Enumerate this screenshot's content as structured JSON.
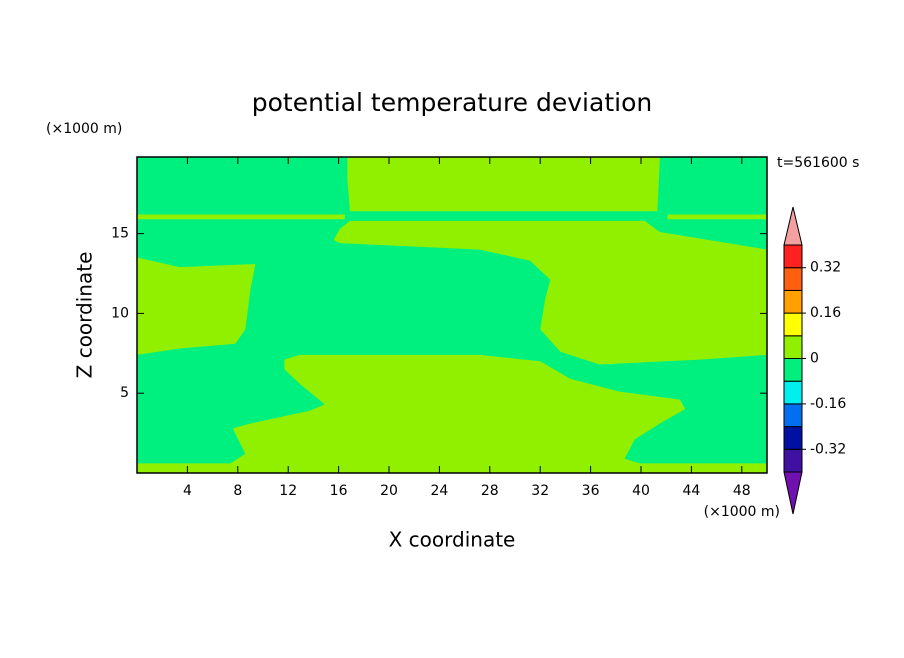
{
  "chart_data": {
    "type": "contour",
    "title": "potential temperature deviation",
    "xlabel": "X coordinate",
    "ylabel": "Z coordinate",
    "xunits": "(×1000 m)",
    "yunits": "(×1000 m)",
    "time_label": "t=561600 s",
    "xlim": [
      0,
      50
    ],
    "ylim": [
      0,
      19.8
    ],
    "xticks": [
      4,
      8,
      12,
      16,
      20,
      24,
      28,
      32,
      36,
      40,
      44,
      48
    ],
    "yticks": [
      5,
      10,
      15
    ],
    "background_range": [
      -0.08,
      0
    ],
    "regions": [
      {
        "range": [
          0,
          0.08
        ],
        "x": [
          16.7,
          41.5,
          41.3,
          16.9,
          16.7
        ],
        "z": [
          19.8,
          19.8,
          16.4,
          16.4,
          18.4
        ]
      },
      {
        "range": [
          0,
          0.08
        ],
        "x": [
          0,
          16.5,
          16.5,
          0
        ],
        "z": [
          16.2,
          16.2,
          15.9,
          15.9
        ]
      },
      {
        "range": [
          0,
          0.08
        ],
        "x": [
          42.1,
          50,
          50,
          42.1
        ],
        "z": [
          16.2,
          16.2,
          15.9,
          15.9
        ]
      },
      {
        "range": [
          0,
          0.08
        ],
        "x": [
          16.9,
          40.3,
          41.5,
          50,
          50,
          44.7,
          36.7,
          33.6,
          32.0,
          32.4,
          32.8,
          31.2,
          27.2,
          16.1,
          15.6,
          16.1
        ],
        "z": [
          15.8,
          15.8,
          15.1,
          14.0,
          7.4,
          7.1,
          6.8,
          7.6,
          9.0,
          10.9,
          12.1,
          13.3,
          14.0,
          14.4,
          14.6,
          15.3
        ]
      },
      {
        "range": [
          0,
          0.08
        ],
        "x": [
          0,
          3.4,
          9.4,
          9.0,
          8.6,
          7.8,
          3.4,
          0
        ],
        "z": [
          13.5,
          12.9,
          13.1,
          11.5,
          9.0,
          8.1,
          7.8,
          7.4
        ]
      },
      {
        "range": [
          0,
          0.08
        ],
        "x": [
          11.7,
          12.9,
          27.2,
          32.0,
          34.4,
          38.3,
          43.1,
          43.5,
          41.5,
          39.5,
          38.7,
          39.9,
          50,
          50,
          0,
          0,
          7.4,
          8.6,
          7.6,
          9.0,
          13.7,
          14.9,
          12.9,
          11.7
        ],
        "z": [
          7.1,
          7.4,
          7.4,
          7.0,
          5.9,
          5.1,
          4.6,
          4.0,
          3.1,
          2.1,
          0.9,
          0.6,
          0.6,
          0,
          0,
          0.6,
          0.6,
          1.2,
          2.8,
          3.1,
          3.9,
          4.3,
          5.6,
          6.5
        ]
      }
    ],
    "colorbar": {
      "levels": [
        -0.4,
        -0.32,
        -0.24,
        -0.16,
        -0.08,
        0,
        0.08,
        0.16,
        0.24,
        0.32,
        0.4
      ],
      "colors": [
        "#7010b0",
        "#4010a0",
        "#0010a0",
        "#0070f0",
        "#00f0f0",
        "#00f080",
        "#90f000",
        "#ffff00",
        "#ffa000",
        "#ff6010",
        "#ff2020",
        "#f4a0a0"
      ],
      "ticks": [
        -0.32,
        -0.16,
        0,
        0.16,
        0.32
      ]
    }
  }
}
